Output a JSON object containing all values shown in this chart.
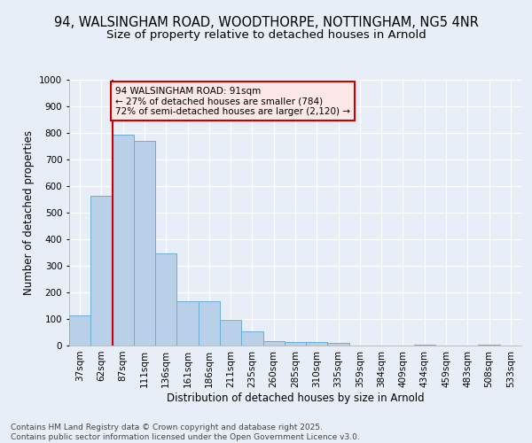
{
  "title_line1": "94, WALSINGHAM ROAD, WOODTHORPE, NOTTINGHAM, NG5 4NR",
  "title_line2": "Size of property relative to detached houses in Arnold",
  "xlabel": "Distribution of detached houses by size in Arnold",
  "ylabel": "Number of detached properties",
  "categories": [
    "37sqm",
    "62sqm",
    "87sqm",
    "111sqm",
    "136sqm",
    "161sqm",
    "186sqm",
    "211sqm",
    "235sqm",
    "260sqm",
    "285sqm",
    "310sqm",
    "335sqm",
    "359sqm",
    "384sqm",
    "409sqm",
    "434sqm",
    "459sqm",
    "483sqm",
    "508sqm",
    "533sqm"
  ],
  "values": [
    112,
    562,
    793,
    770,
    348,
    168,
    168,
    98,
    52,
    18,
    13,
    13,
    10,
    0,
    0,
    0,
    5,
    0,
    0,
    5,
    0
  ],
  "bar_color": "#b8d0e8",
  "bar_edge_color": "#6aaed6",
  "vline_color": "#cc0000",
  "vline_x_index": 2,
  "annotation_text": "94 WALSINGHAM ROAD: 91sqm\n← 27% of detached houses are smaller (784)\n72% of semi-detached houses are larger (2,120) →",
  "annotation_box_facecolor": "#fde8e8",
  "annotation_box_edge": "#cc0000",
  "ylim": [
    0,
    1000
  ],
  "yticks": [
    0,
    100,
    200,
    300,
    400,
    500,
    600,
    700,
    800,
    900,
    1000
  ],
  "background_color": "#e8eef8",
  "grid_color": "#ffffff",
  "footer_line1": "Contains HM Land Registry data © Crown copyright and database right 2025.",
  "footer_line2": "Contains public sector information licensed under the Open Government Licence v3.0.",
  "title_fontsize": 10.5,
  "subtitle_fontsize": 9.5,
  "axis_label_fontsize": 8.5,
  "tick_fontsize": 7.5,
  "annotation_fontsize": 7.5,
  "footer_fontsize": 6.5
}
